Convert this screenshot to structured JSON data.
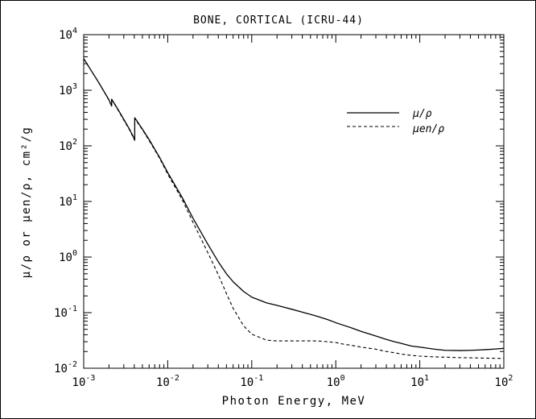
{
  "chart_data": {
    "type": "line",
    "title": "BONE, CORTICAL (ICRU-44)",
    "xlabel": "Photon Energy, MeV",
    "ylabel": "μ/ρ or μen/ρ, cm²/g",
    "x_scale": "log",
    "y_scale": "log",
    "xlim": [
      0.001,
      100
    ],
    "ylim": [
      0.01,
      10000
    ],
    "x_ticks": [
      {
        "value": 0.001,
        "base": "10",
        "exp": "-3"
      },
      {
        "value": 0.01,
        "base": "10",
        "exp": "-2"
      },
      {
        "value": 0.1,
        "base": "10",
        "exp": "-1"
      },
      {
        "value": 1,
        "base": "10",
        "exp": "0"
      },
      {
        "value": 10,
        "base": "10",
        "exp": "1"
      },
      {
        "value": 100,
        "base": "10",
        "exp": "2"
      }
    ],
    "y_ticks": [
      {
        "value": 0.01,
        "base": "10",
        "exp": "-2"
      },
      {
        "value": 0.1,
        "base": "10",
        "exp": "-1"
      },
      {
        "value": 1,
        "base": "10",
        "exp": "0"
      },
      {
        "value": 10,
        "base": "10",
        "exp": "1"
      },
      {
        "value": 100,
        "base": "10",
        "exp": "2"
      },
      {
        "value": 1000,
        "base": "10",
        "exp": "3"
      },
      {
        "value": 10000,
        "base": "10",
        "exp": "4"
      }
    ],
    "grid": false,
    "legend_position": "top-right",
    "series": [
      {
        "name": "μ/ρ",
        "style": "solid",
        "x": [
          0.001,
          0.0015,
          0.002,
          0.00215,
          0.00215,
          0.0025,
          0.003,
          0.0035,
          0.00405,
          0.00405,
          0.005,
          0.006,
          0.008,
          0.01,
          0.015,
          0.02,
          0.03,
          0.04,
          0.05,
          0.06,
          0.08,
          0.1,
          0.15,
          0.2,
          0.3,
          0.4,
          0.5,
          0.6,
          0.8,
          1.0,
          1.25,
          1.5,
          2.0,
          3.0,
          4.0,
          5.0,
          6.0,
          8.0,
          10,
          15,
          20,
          30,
          40,
          50,
          60,
          80,
          100
        ],
        "y": [
          3700,
          1400,
          670,
          520,
          690,
          480,
          300,
          200,
          130,
          320,
          200,
          130,
          62,
          33,
          11.5,
          5.0,
          1.7,
          0.82,
          0.5,
          0.36,
          0.24,
          0.19,
          0.15,
          0.135,
          0.115,
          0.102,
          0.093,
          0.086,
          0.075,
          0.066,
          0.059,
          0.054,
          0.046,
          0.038,
          0.033,
          0.03,
          0.028,
          0.025,
          0.024,
          0.022,
          0.021,
          0.0208,
          0.021,
          0.0213,
          0.0216,
          0.0222,
          0.0228
        ]
      },
      {
        "name": "μen/ρ",
        "style": "dashed",
        "x": [
          0.001,
          0.0015,
          0.002,
          0.00215,
          0.00215,
          0.0025,
          0.003,
          0.0035,
          0.00405,
          0.00405,
          0.005,
          0.006,
          0.008,
          0.01,
          0.015,
          0.02,
          0.03,
          0.04,
          0.05,
          0.06,
          0.08,
          0.1,
          0.15,
          0.2,
          0.3,
          0.4,
          0.5,
          0.6,
          0.8,
          1.0,
          1.25,
          1.5,
          2.0,
          3.0,
          4.0,
          5.0,
          6.0,
          8.0,
          10,
          15,
          20,
          30,
          40,
          50,
          60,
          80,
          100
        ],
        "y": [
          3700,
          1400,
          660,
          510,
          680,
          470,
          290,
          195,
          125,
          310,
          195,
          125,
          60,
          31,
          10.5,
          4.2,
          1.2,
          0.48,
          0.22,
          0.12,
          0.058,
          0.041,
          0.032,
          0.031,
          0.031,
          0.031,
          0.031,
          0.031,
          0.03,
          0.029,
          0.027,
          0.026,
          0.024,
          0.022,
          0.02,
          0.019,
          0.018,
          0.017,
          0.0165,
          0.016,
          0.0158,
          0.0155,
          0.0154,
          0.0153,
          0.0152,
          0.0151,
          0.015
        ]
      }
    ]
  }
}
